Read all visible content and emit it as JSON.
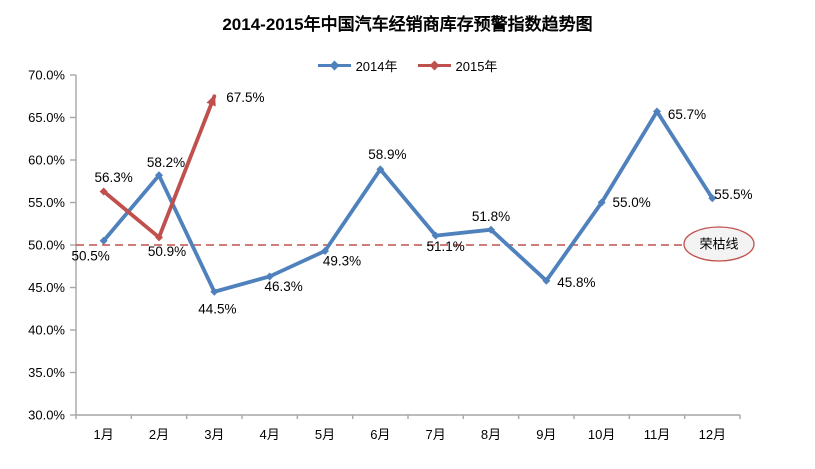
{
  "title": "2014-2015年中国汽车经销商库存预警指数趋势图",
  "chart_data": {
    "type": "line",
    "categories": [
      "1月",
      "2月",
      "3月",
      "4月",
      "5月",
      "6月",
      "7月",
      "8月",
      "9月",
      "10月",
      "11月",
      "12月"
    ],
    "series": [
      {
        "name": "2014年",
        "color": "#4F81BD",
        "values": [
          50.5,
          58.2,
          44.5,
          46.3,
          49.3,
          58.9,
          51.1,
          51.8,
          45.8,
          55.0,
          65.7,
          55.5
        ],
        "labels": [
          "50.5%",
          "58.2%",
          "44.5%",
          "46.3%",
          "49.3%",
          "58.9%",
          "51.1%",
          "51.8%",
          "45.8%",
          "55.0%",
          "65.7%",
          "55.5%"
        ],
        "label_offsets": [
          [
            -13,
            15
          ],
          [
            7,
            -13
          ],
          [
            3,
            17
          ],
          [
            14,
            10
          ],
          [
            17,
            10
          ],
          [
            7,
            -15
          ],
          [
            10,
            11
          ],
          [
            0,
            -13
          ],
          [
            30,
            2
          ],
          [
            30,
            0
          ],
          [
            30,
            3
          ],
          [
            21,
            -4
          ]
        ],
        "arrow_end": false
      },
      {
        "name": "2015年",
        "color": "#C0504D",
        "values": [
          56.3,
          50.9,
          67.5
        ],
        "labels": [
          "56.3%",
          "50.9%",
          "67.5%"
        ],
        "label_offsets": [
          [
            10,
            -14
          ],
          [
            8,
            14
          ],
          [
            31,
            1
          ]
        ],
        "arrow_end": true
      }
    ],
    "ylim": [
      30,
      70
    ],
    "ytick_step": 5,
    "ytick_labels": [
      "30.0%",
      "35.0%",
      "40.0%",
      "45.0%",
      "50.0%",
      "55.0%",
      "60.0%",
      "65.0%",
      "70.0%"
    ],
    "reference_line": {
      "value": 50,
      "label": "荣枯线",
      "color": "#C0504D",
      "style": "dashed"
    },
    "grid": false,
    "legend_position": "top",
    "axis_color": "#A6A6A6",
    "label_color": "#000000"
  }
}
